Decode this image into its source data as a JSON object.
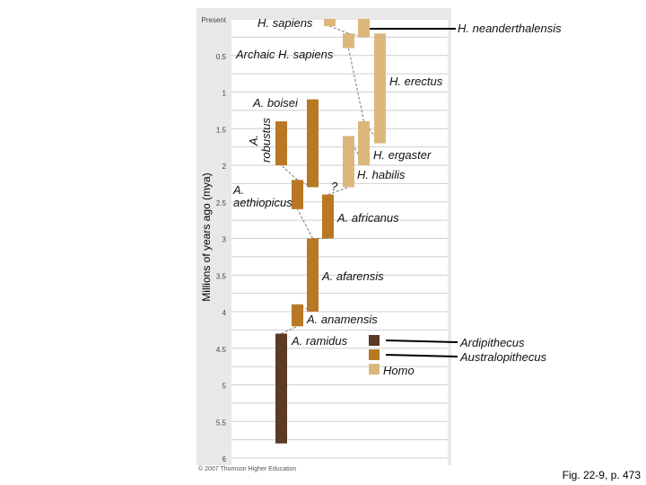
{
  "chart_data": {
    "type": "timeline",
    "y_axis_title": "Millions of years ago (mya)",
    "y_ticks": [
      "Present",
      "0.5",
      "1",
      "1.5",
      "2",
      "2.5",
      "3",
      "3.5",
      "4",
      "4.5",
      "5",
      "5.5",
      "6"
    ],
    "taxa": [
      {
        "name": "H. sapiens",
        "genus": "Homo",
        "start_mya": 0.0,
        "end_mya": 0.1
      },
      {
        "name": "Archaic H. sapiens",
        "genus": "Homo",
        "start_mya": 0.2,
        "end_mya": 0.4
      },
      {
        "name": "H. neanderthalensis",
        "genus": "Homo",
        "start_mya": 0.0,
        "end_mya": 0.25
      },
      {
        "name": "H. erectus",
        "genus": "Homo",
        "start_mya": 0.2,
        "end_mya": 1.7
      },
      {
        "name": "H. ergaster",
        "genus": "Homo",
        "start_mya": 1.4,
        "end_mya": 2.0
      },
      {
        "name": "H. habilis",
        "genus": "Homo",
        "start_mya": 1.6,
        "end_mya": 2.3
      },
      {
        "name": "A. boisei",
        "genus": "Australopithecus",
        "start_mya": 1.1,
        "end_mya": 2.3
      },
      {
        "name": "A. robustus",
        "genus": "Australopithecus",
        "start_mya": 1.4,
        "end_mya": 2.0
      },
      {
        "name": "A. aethiopicus",
        "genus": "Australopithecus",
        "start_mya": 2.2,
        "end_mya": 2.6
      },
      {
        "name": "A. africanus",
        "genus": "Australopithecus",
        "start_mya": 2.4,
        "end_mya": 3.0
      },
      {
        "name": "A. afarensis",
        "genus": "Australopithecus",
        "start_mya": 3.0,
        "end_mya": 4.0
      },
      {
        "name": "A. anamensis",
        "genus": "Australopithecus",
        "start_mya": 3.9,
        "end_mya": 4.2
      },
      {
        "name": "A. ramidus",
        "genus": "Ardipithecus",
        "start_mya": 4.3,
        "end_mya": 5.8
      }
    ],
    "legend": [
      {
        "label": "Ardipithecus",
        "color": "#5b3a26"
      },
      {
        "label": "Australopithecus",
        "color": "#b87824"
      },
      {
        "label": "Homo",
        "color": "#dcb77c"
      }
    ],
    "annotations": [
      "?"
    ]
  },
  "labels": {
    "h_sapiens": "H. sapiens",
    "h_neanderthalensis": "H. neanderthalensis",
    "archaic_h_sapiens": "Archaic H. sapiens",
    "h_erectus": "H. erectus",
    "a_boisei": "A. boisei",
    "a_robustus": "A. robustus",
    "h_ergaster": "H. ergaster",
    "h_habilis": "H. habilis",
    "question": "?",
    "a_aethiopicus": "A. aethiopicus",
    "a_africanus": "A. africanus",
    "a_afarensis": "A. afarensis",
    "a_anamensis": "A. anamensis",
    "a_ramidus": "A. ramidus",
    "homo": "Homo"
  },
  "caption": "Fig. 22-9, p. 473",
  "copyright": "© 2007 Thomson Higher Education"
}
